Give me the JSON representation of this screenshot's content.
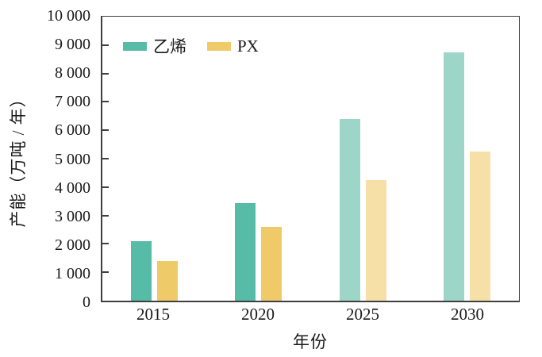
{
  "chart_data": {
    "type": "bar",
    "title": "",
    "xlabel": "年份",
    "ylabel": "产能（万吨 / 年）",
    "categories": [
      "2015",
      "2020",
      "2025",
      "2030"
    ],
    "series": [
      {
        "id": "ethylene",
        "name": "乙烯",
        "values": [
          2100,
          3450,
          6400,
          8750
        ],
        "color_actual": "#56bba7",
        "color_projected": "#9dd6c9"
      },
      {
        "id": "px",
        "name": "PX",
        "values": [
          1400,
          2600,
          4250,
          5250
        ],
        "color_actual": "#efca68",
        "color_projected": "#f6e0a8"
      }
    ],
    "projected_from_category_index": 2,
    "ylim": [
      0,
      10000
    ],
    "y_tick_interval": 1000,
    "y_tick_labels": [
      "0",
      "1 000",
      "2 000",
      "3 000",
      "4 000",
      "5 000",
      "6 000",
      "7 000",
      "8 000",
      "9 000",
      "10 000"
    ],
    "legend_position": "top-left-inside",
    "grid": false
  },
  "colors": {
    "axis": "#3f3f3f",
    "text": "#1a1a1a",
    "background": "#ffffff"
  }
}
